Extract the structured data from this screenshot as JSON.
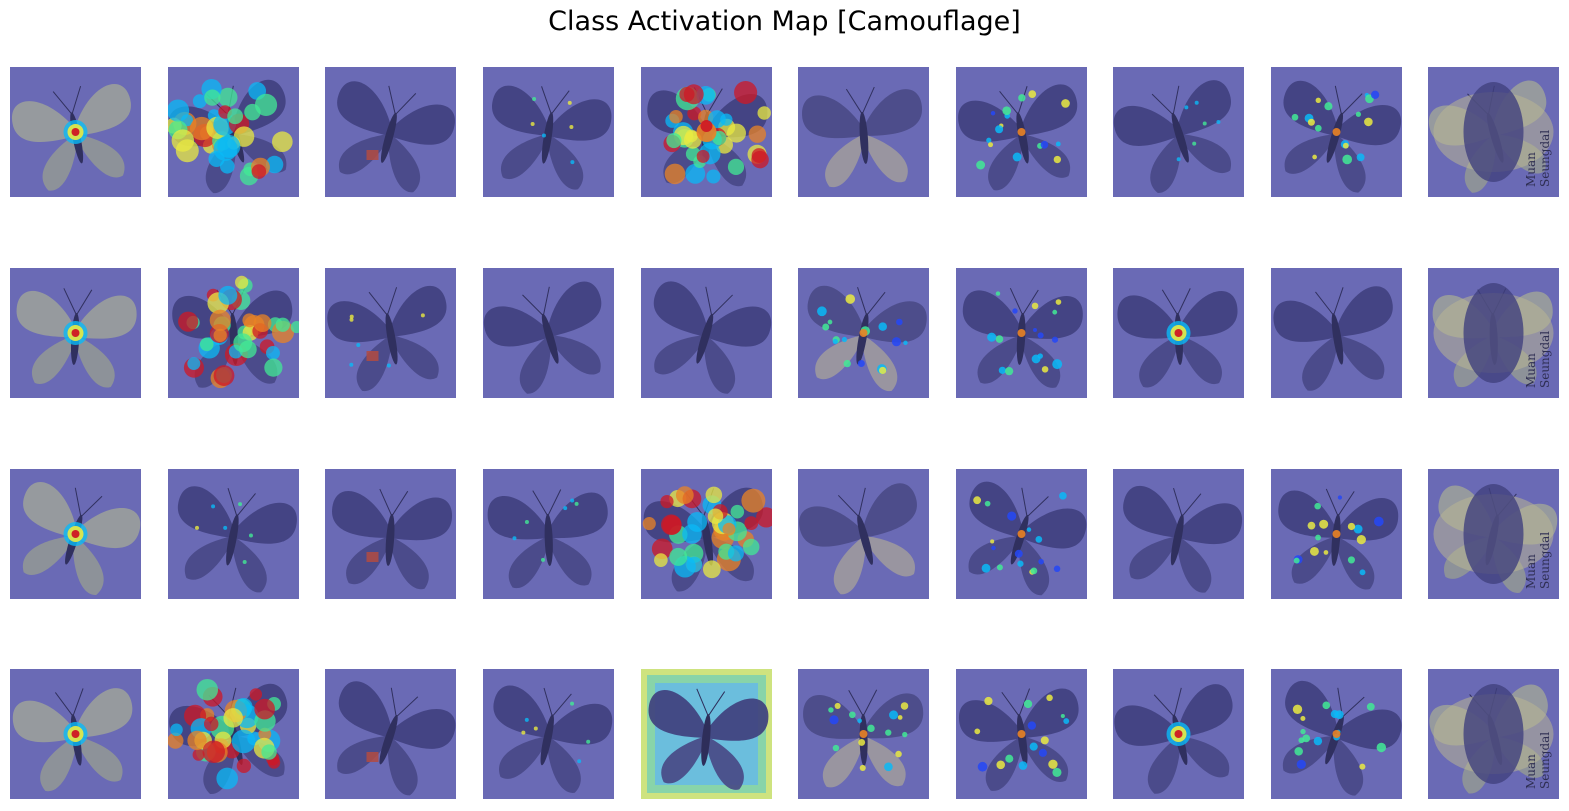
{
  "title": "Class Activation Map [Camouflage]",
  "grid": {
    "rows": 4,
    "cols": 10
  },
  "colors": {
    "background": "#ffffff",
    "overlay_base": "#6e6eb4",
    "moth_dark": "#3f3f78",
    "moth_light": "#a8a89a",
    "heat": [
      "#1e46ff",
      "#00c8ff",
      "#40ff90",
      "#ffff30",
      "#ff8a10",
      "#e01010"
    ]
  },
  "tiles": [
    {
      "row": 1,
      "col": 1,
      "moth": "light",
      "heat": "center"
    },
    {
      "row": 1,
      "col": 2,
      "moth": "dark",
      "heat": "wings-strong"
    },
    {
      "row": 1,
      "col": 3,
      "moth": "dark",
      "heat": "none",
      "tag": true
    },
    {
      "row": 1,
      "col": 4,
      "moth": "dark",
      "heat": "faint"
    },
    {
      "row": 1,
      "col": 5,
      "moth": "dark",
      "heat": "body-strong"
    },
    {
      "row": 1,
      "col": 6,
      "moth": "mixed",
      "heat": "none"
    },
    {
      "row": 1,
      "col": 7,
      "moth": "dark",
      "heat": "spots"
    },
    {
      "row": 1,
      "col": 8,
      "moth": "dark",
      "heat": "faint"
    },
    {
      "row": 1,
      "col": 9,
      "moth": "dark",
      "heat": "spots"
    },
    {
      "row": 1,
      "col": 10,
      "moth": "label",
      "heat": "none",
      "label_text": [
        "Seungdal",
        "Muan"
      ]
    },
    {
      "row": 2,
      "col": 1,
      "moth": "light",
      "heat": "center"
    },
    {
      "row": 2,
      "col": 2,
      "moth": "dark",
      "heat": "wings-strong"
    },
    {
      "row": 2,
      "col": 3,
      "moth": "dark",
      "heat": "faint",
      "tag": true
    },
    {
      "row": 2,
      "col": 4,
      "moth": "dark",
      "heat": "none"
    },
    {
      "row": 2,
      "col": 5,
      "moth": "dark",
      "heat": "none"
    },
    {
      "row": 2,
      "col": 6,
      "moth": "mixed",
      "heat": "spots"
    },
    {
      "row": 2,
      "col": 7,
      "moth": "dark",
      "heat": "spots"
    },
    {
      "row": 2,
      "col": 8,
      "moth": "dark",
      "heat": "center"
    },
    {
      "row": 2,
      "col": 9,
      "moth": "dark",
      "heat": "none"
    },
    {
      "row": 2,
      "col": 10,
      "moth": "label",
      "heat": "none",
      "label_text": [
        "Seungdal",
        "Muan"
      ]
    },
    {
      "row": 3,
      "col": 1,
      "moth": "light",
      "heat": "center"
    },
    {
      "row": 3,
      "col": 2,
      "moth": "dark",
      "heat": "faint"
    },
    {
      "row": 3,
      "col": 3,
      "moth": "dark",
      "heat": "none",
      "tag": true
    },
    {
      "row": 3,
      "col": 4,
      "moth": "dark",
      "heat": "faint"
    },
    {
      "row": 3,
      "col": 5,
      "moth": "dark",
      "heat": "wings-strong"
    },
    {
      "row": 3,
      "col": 6,
      "moth": "mixed",
      "heat": "none"
    },
    {
      "row": 3,
      "col": 7,
      "moth": "dark",
      "heat": "spots"
    },
    {
      "row": 3,
      "col": 8,
      "moth": "dark",
      "heat": "none"
    },
    {
      "row": 3,
      "col": 9,
      "moth": "dark",
      "heat": "spots"
    },
    {
      "row": 3,
      "col": 10,
      "moth": "label",
      "heat": "none",
      "label_text": [
        "Seungdal",
        "Muan"
      ]
    },
    {
      "row": 4,
      "col": 1,
      "moth": "light",
      "heat": "center"
    },
    {
      "row": 4,
      "col": 2,
      "moth": "dark",
      "heat": "wings-strong"
    },
    {
      "row": 4,
      "col": 3,
      "moth": "dark",
      "heat": "none",
      "tag": true
    },
    {
      "row": 4,
      "col": 4,
      "moth": "dark",
      "heat": "faint"
    },
    {
      "row": 4,
      "col": 5,
      "moth": "dark",
      "heat": "inverse"
    },
    {
      "row": 4,
      "col": 6,
      "moth": "mixed",
      "heat": "spots"
    },
    {
      "row": 4,
      "col": 7,
      "moth": "dark",
      "heat": "spots"
    },
    {
      "row": 4,
      "col": 8,
      "moth": "dark",
      "heat": "center"
    },
    {
      "row": 4,
      "col": 9,
      "moth": "dark",
      "heat": "spots"
    },
    {
      "row": 4,
      "col": 10,
      "moth": "label",
      "heat": "none",
      "label_text": [
        "Seungdal",
        "Muan"
      ]
    }
  ]
}
